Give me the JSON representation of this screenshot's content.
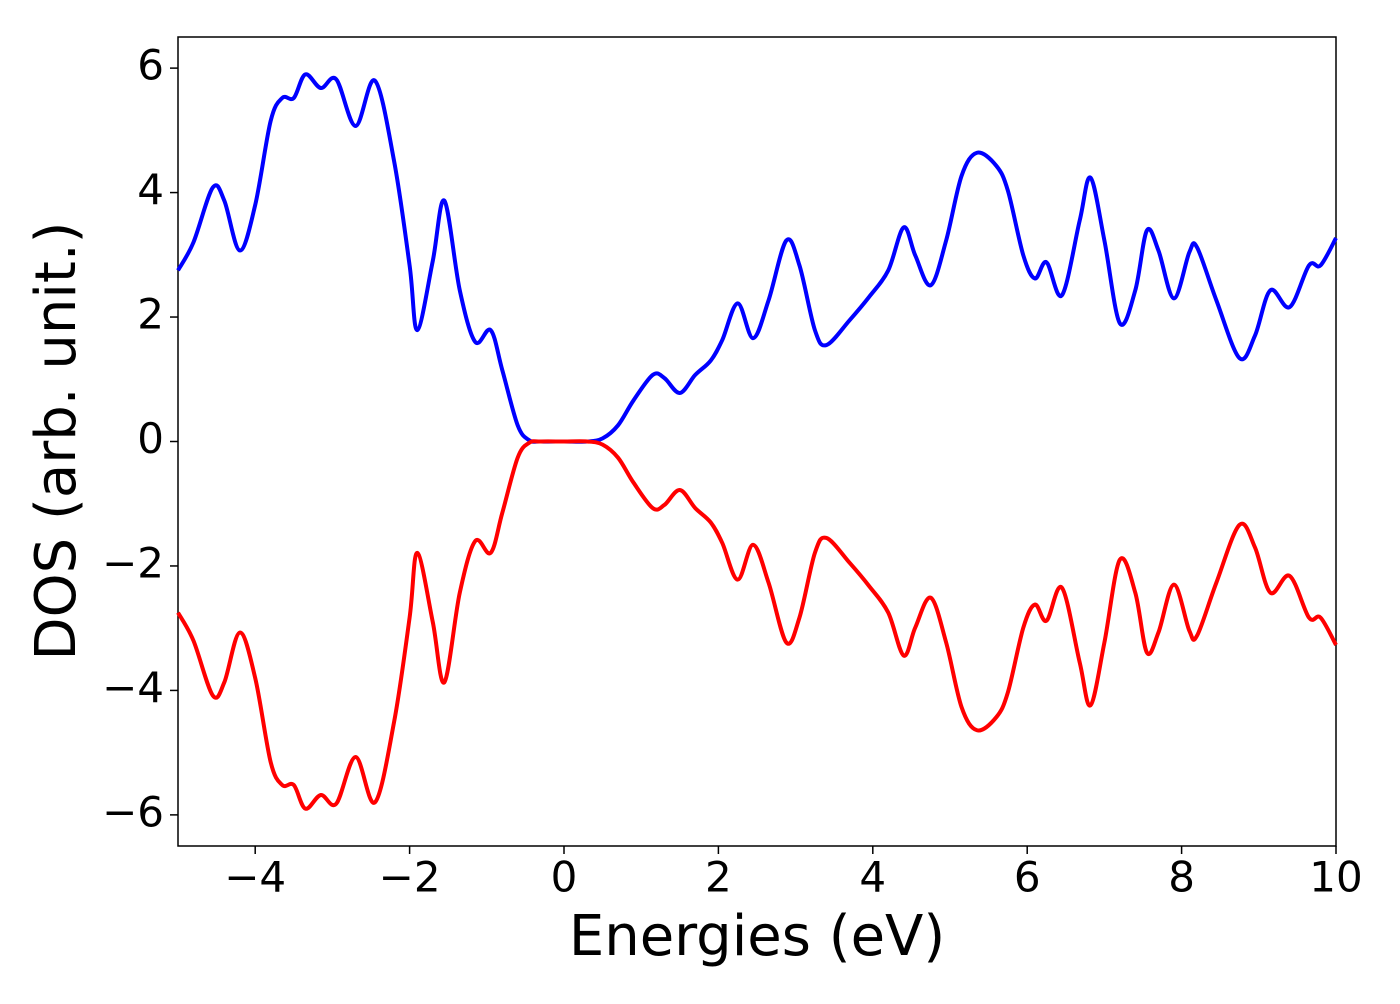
{
  "chart_data": {
    "type": "line",
    "xlabel": "Energies (eV)",
    "ylabel": "DOS (arb. unit.)",
    "x": [
      -5,
      -4.8,
      -4.55,
      -4.4,
      -4.2,
      -4.0,
      -3.8,
      -3.65,
      -3.5,
      -3.35,
      -3.15,
      -2.95,
      -2.7,
      -2.45,
      -2.2,
      -2.0,
      -1.9,
      -1.7,
      -1.55,
      -1.35,
      -1.15,
      -0.95,
      -0.8,
      -0.6,
      -0.45,
      -0.3,
      0,
      0.3,
      0.5,
      0.7,
      0.9,
      1.15,
      1.3,
      1.5,
      1.7,
      1.9,
      2.05,
      2.25,
      2.45,
      2.65,
      2.88,
      3.05,
      3.25,
      3.4,
      3.7,
      3.95,
      4.2,
      4.4,
      4.55,
      4.75,
      4.95,
      5.15,
      5.35,
      5.6,
      5.75,
      5.95,
      6.1,
      6.25,
      6.45,
      6.68,
      6.82,
      7.0,
      7.2,
      7.4,
      7.55,
      7.7,
      7.9,
      8.1,
      8.2,
      8.45,
      8.75,
      8.95,
      9.15,
      9.4,
      9.65,
      9.8,
      10
    ],
    "series": [
      {
        "color": "#0000ff",
        "values": [
          2.75,
          3.2,
          4.08,
          3.87,
          3.07,
          3.8,
          5.15,
          5.52,
          5.52,
          5.9,
          5.68,
          5.82,
          5.07,
          5.8,
          4.5,
          2.83,
          1.79,
          2.9,
          3.87,
          2.43,
          1.6,
          1.79,
          1.15,
          0.26,
          0.02,
          0,
          0,
          0,
          0.05,
          0.26,
          0.66,
          1.07,
          1.02,
          0.78,
          1.07,
          1.3,
          1.63,
          2.22,
          1.66,
          2.27,
          3.23,
          2.83,
          1.79,
          1.55,
          1.95,
          2.32,
          2.75,
          3.44,
          2.99,
          2.51,
          3.23,
          4.27,
          4.64,
          4.43,
          4.03,
          2.99,
          2.62,
          2.88,
          2.35,
          3.55,
          4.24,
          3.23,
          1.9,
          2.43,
          3.39,
          3.07,
          2.3,
          3.04,
          3.12,
          2.27,
          1.34,
          1.7,
          2.43,
          2.16,
          2.83,
          2.83,
          3.27
        ]
      },
      {
        "color": "#ff0000",
        "values": [
          -2.75,
          -3.2,
          -4.08,
          -3.87,
          -3.07,
          -3.8,
          -5.15,
          -5.52,
          -5.52,
          -5.9,
          -5.68,
          -5.82,
          -5.07,
          -5.8,
          -4.5,
          -2.83,
          -1.79,
          -2.9,
          -3.87,
          -2.43,
          -1.6,
          -1.79,
          -1.15,
          -0.26,
          -0.02,
          0,
          0,
          0,
          -0.05,
          -0.26,
          -0.66,
          -1.07,
          -1.02,
          -0.78,
          -1.07,
          -1.3,
          -1.63,
          -2.22,
          -1.66,
          -2.27,
          -3.23,
          -2.83,
          -1.79,
          -1.55,
          -1.95,
          -2.32,
          -2.75,
          -3.44,
          -2.99,
          -2.51,
          -3.23,
          -4.27,
          -4.64,
          -4.43,
          -4.03,
          -2.99,
          -2.62,
          -2.88,
          -2.35,
          -3.55,
          -4.24,
          -3.23,
          -1.9,
          -2.43,
          -3.39,
          -3.07,
          -2.3,
          -3.04,
          -3.12,
          -2.27,
          -1.34,
          -1.7,
          -2.43,
          -2.16,
          -2.83,
          -2.83,
          -3.27
        ]
      }
    ],
    "xlim": [
      -5,
      10
    ],
    "xticks": [
      {
        "value": -4,
        "label": "−4"
      },
      {
        "value": -2,
        "label": "−2"
      },
      0,
      2,
      4,
      6,
      8,
      10
    ],
    "ylim": [
      -6.5,
      6.5
    ],
    "yticks": [
      {
        "value": -6,
        "label": "−6"
      },
      {
        "value": -4,
        "label": "−4"
      },
      {
        "value": -2,
        "label": "−2"
      },
      0,
      2,
      4,
      6
    ],
    "grid": false
  }
}
